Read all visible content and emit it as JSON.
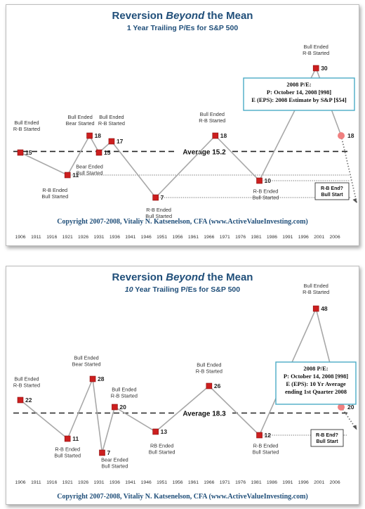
{
  "chart_data": [
    {
      "type": "line",
      "title": "Reversion Beyond the Mean",
      "title_parts": [
        "Reversion ",
        "Beyond",
        " the Mean"
      ],
      "subtitle": "1 Year Trailing P/Es for S&P 500",
      "x_ticks": [
        "1906",
        "1911",
        "1916",
        "1921",
        "1926",
        "1931",
        "1936",
        "1941",
        "1946",
        "1951",
        "1956",
        "1961",
        "1966",
        "1971",
        "1976",
        "1981",
        "1986",
        "1991",
        "1996",
        "2001",
        "2006"
      ],
      "xlim": [
        1906,
        2010
      ],
      "ylim": [
        4,
        34
      ],
      "average": {
        "label": "Average 15.2",
        "value": 15.2
      },
      "series": [
        {
          "points": [
            {
              "x": 1906,
              "y": 15,
              "label": "15"
            },
            {
              "x": 1921,
              "y": 11,
              "label": "11"
            },
            {
              "x": 1928,
              "y": 18,
              "label": "18"
            },
            {
              "x": 1931,
              "y": 15,
              "label": "15"
            },
            {
              "x": 1935,
              "y": 17,
              "label": "17"
            },
            {
              "x": 1949,
              "y": 7,
              "label": "7"
            },
            {
              "x": 1968,
              "y": 18,
              "label": "18"
            },
            {
              "x": 1982,
              "y": 10,
              "label": "10"
            },
            {
              "x": 2000,
              "y": 30,
              "label": "30"
            }
          ]
        }
      ],
      "estimate": {
        "from": {
          "x": 2000,
          "y": 30
        },
        "point": {
          "x": 2008,
          "y": 18,
          "label": "18"
        }
      },
      "projection_end": {
        "x": 2013,
        "y": 6
      },
      "reference_lines": [
        {
          "y": 11,
          "from_x": 1921
        },
        {
          "y": 10,
          "from_x": 1982
        },
        {
          "y": 7,
          "from_x": 1949
        }
      ],
      "annotations": [
        {
          "lines": [
            "Bull Ended",
            "R-B Started"
          ],
          "x": 1908,
          "y": 20.0
        },
        {
          "lines": [
            "R-B Ended",
            "Bull Started"
          ],
          "x": 1917,
          "y": 8.0
        },
        {
          "lines": [
            "Bull Ended",
            "Bear Started"
          ],
          "x": 1925,
          "y": 21.0
        },
        {
          "lines": [
            "Bull Ended",
            "R-B Started"
          ],
          "x": 1935,
          "y": 21.0
        },
        {
          "lines": [
            "Bear Ended",
            "Bull Started"
          ],
          "x": 1928,
          "y": 12.2
        },
        {
          "lines": [
            "R-B Ended",
            "Bull Started"
          ],
          "x": 1950,
          "y": 4.5
        },
        {
          "lines": [
            "Bull Ended",
            "R-B Started"
          ],
          "x": 1967,
          "y": 21.5
        },
        {
          "lines": [
            "R-B Ended",
            "Bull Started"
          ],
          "x": 1984,
          "y": 7.8
        },
        {
          "lines": [
            "Bull Ended",
            "R-B Started"
          ],
          "x": 2000,
          "y": 33.5
        }
      ],
      "callout": {
        "lines": [
          "2008 P/E:",
          "P: October 14, 2008 [998]",
          "E (EPS): 2008 Estimate by S&P  [$54]"
        ]
      },
      "end_box": {
        "lines": [
          "R-B End?",
          "Bull Start"
        ]
      },
      "copyright": "Copyright 2007-2008,  Vitaliy N. Katsenelson,  CFA (www.ActiveValueInvesting.com)"
    },
    {
      "type": "line",
      "title": "Reversion Beyond the Mean",
      "title_parts": [
        "Reversion ",
        "Beyond",
        " the Mean"
      ],
      "subtitle": "10 Year Trailing P/Es for S&P 500",
      "subtitle_parts": [
        "10",
        " Year Trailing P/Es for S&P 500"
      ],
      "x_ticks": [
        "1906",
        "1911",
        "1916",
        "1921",
        "1926",
        "1931",
        "1936",
        "1941",
        "1946",
        "1951",
        "1956",
        "1961",
        "1966",
        "1971",
        "1976",
        "1981",
        "1986",
        "1991",
        "1996",
        "2001",
        "2006"
      ],
      "xlim": [
        1906,
        2010
      ],
      "ylim": [
        2,
        52
      ],
      "average": {
        "label": "Average 18.3",
        "value": 18.3
      },
      "series": [
        {
          "points": [
            {
              "x": 1906,
              "y": 22,
              "label": "22"
            },
            {
              "x": 1921,
              "y": 11,
              "label": "11"
            },
            {
              "x": 1929,
              "y": 28,
              "label": "28"
            },
            {
              "x": 1932,
              "y": 7,
              "label": "7"
            },
            {
              "x": 1936,
              "y": 20,
              "label": "20"
            },
            {
              "x": 1949,
              "y": 13,
              "label": "13"
            },
            {
              "x": 1966,
              "y": 26,
              "label": "26"
            },
            {
              "x": 1982,
              "y": 12,
              "label": "12"
            },
            {
              "x": 2000,
              "y": 48,
              "label": "48"
            }
          ]
        }
      ],
      "estimate": {
        "from": {
          "x": 2000,
          "y": 48
        },
        "point": {
          "x": 2008,
          "y": 20,
          "label": "20"
        }
      },
      "projection_end": {
        "x": 2013,
        "y": 13.5
      },
      "reference_lines": [
        {
          "y": 12,
          "from_x": 1982
        }
      ],
      "annotations": [
        {
          "lines": [
            "Bull Ended",
            "R-B Started"
          ],
          "x": 1908,
          "y": 27.5
        },
        {
          "lines": [
            "R-B Ended",
            "Bull Started"
          ],
          "x": 1921,
          "y": 7.5
        },
        {
          "lines": [
            "Bull Ended",
            "Bear Started"
          ],
          "x": 1927,
          "y": 33.5
        },
        {
          "lines": [
            "Bull Ended",
            "R-B Started"
          ],
          "x": 1939,
          "y": 24.5
        },
        {
          "lines": [
            "Bear Ended",
            "Bull Started"
          ],
          "x": 1936,
          "y": 4.5
        },
        {
          "lines": [
            "RB Ended",
            "Bull Started"
          ],
          "x": 1951,
          "y": 8.5
        },
        {
          "lines": [
            "Bull Ended",
            "R-B Started"
          ],
          "x": 1966,
          "y": 31.5
        },
        {
          "lines": [
            "R-B Ended",
            "Bull Started"
          ],
          "x": 1984,
          "y": 8.5
        },
        {
          "lines": [
            "Bull Ended",
            "R-B Started"
          ],
          "x": 2000,
          "y": 54
        }
      ],
      "callout": {
        "lines": [
          "2008 P/E:",
          "P: October 14, 2008 [998]",
          "E (EPS):  10 Yr Average",
          "ending 1st Quarter 2008"
        ]
      },
      "end_box": {
        "lines": [
          "R-B End?",
          "Bull Start"
        ]
      },
      "copyright": "Copyright 2007-2008,  Vitaliy N. Katsenelson,  CFA (www.ActiveValueInvesting.com)"
    }
  ],
  "colors": {
    "title": "#1f4e79",
    "marker": "#cc1f1f",
    "marker_border": "#8a0d0d",
    "estimate_marker": "#f08080",
    "line": "#a8a8a8",
    "callout_border": "#4bacc6",
    "dash": "#222222"
  }
}
